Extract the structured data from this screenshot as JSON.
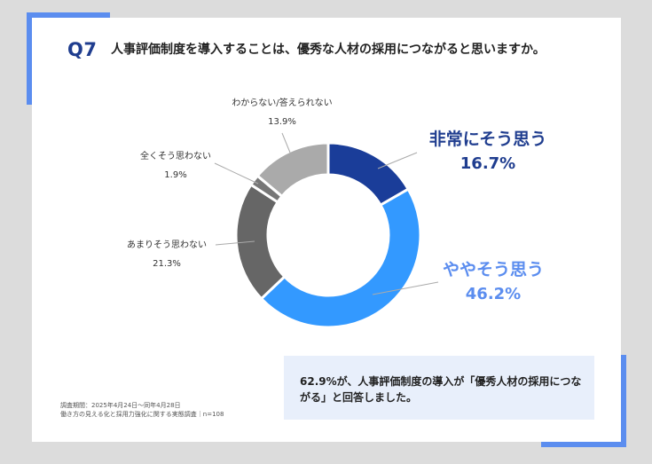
{
  "question": {
    "label": "Q7",
    "title": "人事評価制度を導入することは、優秀な人材の採用につながると思いますか。"
  },
  "chart_data": {
    "type": "pie",
    "slices": [
      {
        "name": "非常にそう思う",
        "value": 16.7,
        "label": "16.7%",
        "color": "#1a3d99"
      },
      {
        "name": "ややそう思う",
        "value": 46.2,
        "label": "46.2%",
        "color": "#3399ff"
      },
      {
        "name": "あまりそう思わない",
        "value": 21.3,
        "label": "21.3%",
        "color": "#666666"
      },
      {
        "name": "全くそう思わない",
        "value": 1.9,
        "label": "1.9%",
        "color": "#777777"
      },
      {
        "name": "わからない/答えられない",
        "value": 13.9,
        "label": "13.9%",
        "color": "#aaaaaa"
      }
    ]
  },
  "summary": "62.9%が、人事評価制度の導入が「優秀人材の採用につながる」と回答しました。",
  "footnote": {
    "line1": "調査期間：2025年4月24日～同年4月28日",
    "line2": "働き方の見える化と採用力強化に関する実態調査｜n=108"
  },
  "colors": {
    "accent": "#5b8def",
    "title_blue": "#1f3d8f",
    "label_light_blue": "#5b8def",
    "summary_bg": "#e8effb"
  }
}
